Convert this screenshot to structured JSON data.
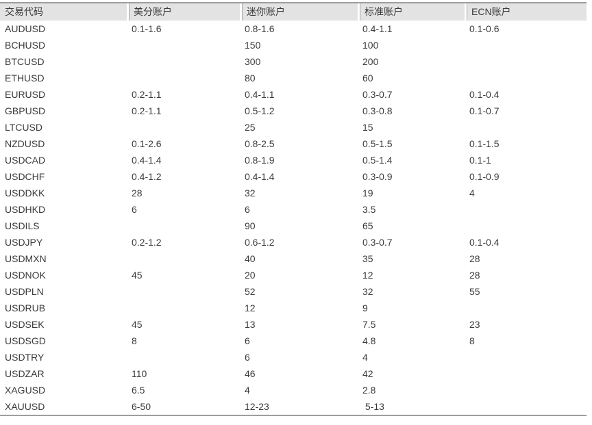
{
  "table": {
    "headers": [
      "交易代码",
      "美分账户",
      "迷你账户",
      "标准账户",
      "ECN账户"
    ],
    "rows": [
      [
        "AUDUSD",
        "0.1-1.6",
        "0.8-1.6",
        "0.4-1.1",
        "0.1-0.6"
      ],
      [
        "BCHUSD",
        "",
        "150",
        "100",
        ""
      ],
      [
        "BTCUSD",
        "",
        "300",
        "200",
        ""
      ],
      [
        "ETHUSD",
        "",
        "80",
        "60",
        ""
      ],
      [
        "EURUSD",
        "0.2-1.1",
        "0.4-1.1",
        "0.3-0.7",
        "0.1-0.4"
      ],
      [
        "GBPUSD",
        "0.2-1.1",
        "0.5-1.2",
        "0.3-0.8",
        "0.1-0.7"
      ],
      [
        "LTCUSD",
        "",
        "25",
        "15",
        ""
      ],
      [
        "NZDUSD",
        "0.1-2.6",
        "0.8-2.5",
        "0.5-1.5",
        "0.1-1.5"
      ],
      [
        "USDCAD",
        "0.4-1.4",
        "0.8-1.9",
        "0.5-1.4",
        "0.1-1"
      ],
      [
        "USDCHF",
        "0.4-1.2",
        "0.4-1.4",
        "0.3-0.9",
        "0.1-0.9"
      ],
      [
        "USDDKK",
        "28",
        "32",
        "19",
        "4"
      ],
      [
        "USDHKD",
        "6",
        "6",
        "3.5",
        ""
      ],
      [
        "USDILS",
        "",
        "90",
        "65",
        ""
      ],
      [
        "USDJPY",
        "0.2-1.2",
        "0.6-1.2",
        "0.3-0.7",
        "0.1-0.4"
      ],
      [
        "USDMXN",
        "",
        "40",
        "35",
        "28"
      ],
      [
        "USDNOK",
        "45",
        "20",
        "12",
        "28"
      ],
      [
        "USDPLN",
        "",
        "52",
        "32",
        "55"
      ],
      [
        "USDRUB",
        "",
        "12",
        "9",
        ""
      ],
      [
        "USDSEK",
        "45",
        "13",
        "7.5",
        "23"
      ],
      [
        "USDSGD",
        "8",
        "6",
        "4.8",
        "8"
      ],
      [
        "USDTRY",
        "",
        "6",
        "4",
        ""
      ],
      [
        "USDZAR",
        "110",
        "46",
        "42",
        ""
      ],
      [
        "XAGUSD",
        "6.5",
        "4",
        "2.8",
        ""
      ],
      [
        "XAUUSD",
        "6-50",
        "12-23",
        " 5-13",
        ""
      ]
    ],
    "colors": {
      "text": "#3b3b3b",
      "outer_border": "#9e9e9e",
      "header_bg": "#e3e3e3",
      "header_divider": "#a6a6a6",
      "page_bg": "#ffffff"
    }
  }
}
